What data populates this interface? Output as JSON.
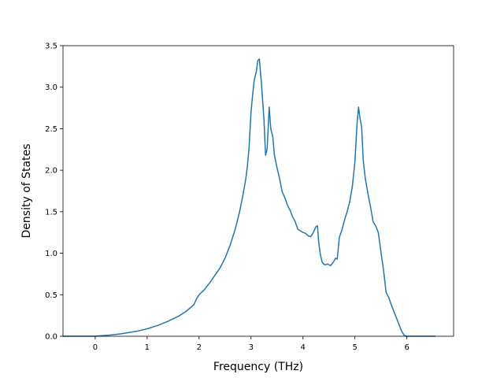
{
  "chart_data": {
    "type": "line",
    "title": "",
    "xlabel": "Frequency (THz)",
    "ylabel": "Density of States",
    "xlim": [
      -0.62,
      6.9
    ],
    "ylim": [
      0,
      3.5
    ],
    "xticks": [
      0,
      1,
      2,
      3,
      4,
      5,
      6
    ],
    "yticks": [
      0.0,
      0.5,
      1.0,
      1.5,
      2.0,
      2.5,
      3.0,
      3.5
    ],
    "xtick_labels": [
      "0",
      "1",
      "2",
      "3",
      "4",
      "5",
      "6"
    ],
    "ytick_labels": [
      "0.0",
      "0.5",
      "1.0",
      "1.5",
      "2.0",
      "2.5",
      "3.0",
      "3.5"
    ],
    "grid": false,
    "legend": "none",
    "series": [
      {
        "color": "#1f77b4",
        "x": [
          -0.62,
          0.0,
          0.3,
          0.5,
          0.8,
          1.0,
          1.2,
          1.4,
          1.6,
          1.75,
          1.9,
          1.95,
          2.0,
          2.1,
          2.2,
          2.3,
          2.4,
          2.5,
          2.6,
          2.7,
          2.78,
          2.85,
          2.9,
          2.93,
          2.96,
          3.0,
          3.03,
          3.06,
          3.1,
          3.13,
          3.16,
          3.2,
          3.25,
          3.28,
          3.31,
          3.35,
          3.38,
          3.42,
          3.45,
          3.5,
          3.55,
          3.6,
          3.65,
          3.7,
          3.75,
          3.8,
          3.85,
          3.9,
          3.95,
          4.0,
          4.05,
          4.1,
          4.15,
          4.2,
          4.25,
          4.28,
          4.3,
          4.33,
          4.37,
          4.42,
          4.48,
          4.53,
          4.58,
          4.63,
          4.66,
          4.7,
          4.75,
          4.8,
          4.85,
          4.9,
          4.95,
          5.0,
          5.04,
          5.07,
          5.1,
          5.13,
          5.16,
          5.2,
          5.25,
          5.3,
          5.35,
          5.4,
          5.45,
          5.5,
          5.55,
          5.6,
          5.65,
          5.7,
          5.75,
          5.8,
          5.85,
          5.9,
          5.95,
          6.0,
          6.2,
          6.55
        ],
        "y": [
          0.0,
          0.0,
          0.015,
          0.03,
          0.06,
          0.09,
          0.13,
          0.18,
          0.24,
          0.3,
          0.38,
          0.45,
          0.5,
          0.56,
          0.64,
          0.73,
          0.82,
          0.94,
          1.1,
          1.3,
          1.5,
          1.72,
          1.9,
          2.05,
          2.25,
          2.7,
          2.9,
          3.08,
          3.18,
          3.32,
          3.34,
          3.05,
          2.6,
          2.18,
          2.25,
          2.76,
          2.5,
          2.4,
          2.18,
          2.03,
          1.9,
          1.74,
          1.67,
          1.58,
          1.52,
          1.44,
          1.38,
          1.29,
          1.27,
          1.25,
          1.24,
          1.21,
          1.2,
          1.25,
          1.32,
          1.33,
          1.15,
          1.0,
          0.89,
          0.86,
          0.87,
          0.85,
          0.89,
          0.94,
          0.93,
          1.19,
          1.28,
          1.4,
          1.5,
          1.62,
          1.8,
          2.1,
          2.55,
          2.76,
          2.62,
          2.52,
          2.12,
          1.9,
          1.72,
          1.56,
          1.38,
          1.33,
          1.25,
          1.02,
          0.8,
          0.53,
          0.47,
          0.38,
          0.3,
          0.22,
          0.14,
          0.06,
          0.01,
          0.0,
          0.0,
          0.0
        ]
      }
    ]
  }
}
